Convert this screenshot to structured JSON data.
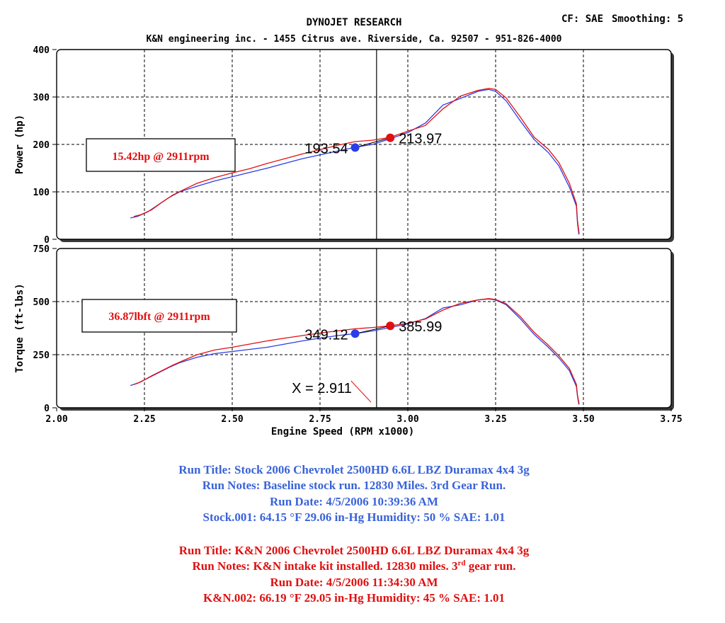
{
  "header": {
    "title": "DYNOJET RESEARCH",
    "subtitle": "K&N engineering inc. - 1455 Citrus ave. Riverside, Ca. 92507 - 951-826-4000",
    "cf": "CF: SAE",
    "smoothing": "Smoothing: 5"
  },
  "chart_data": [
    {
      "type": "line",
      "title": "",
      "ylabel": "Power (hp)",
      "xlabel": "",
      "xlim": [
        2.0,
        3.75
      ],
      "ylim": [
        0,
        400
      ],
      "x_ticks": [
        "2.00",
        "2.25",
        "2.50",
        "2.75",
        "3.00",
        "3.25",
        "3.50",
        "3.75"
      ],
      "y_ticks": [
        "0",
        "100",
        "200",
        "300",
        "400"
      ],
      "grid": true,
      "cursor_x": 2.911,
      "annotation": "15.42hp @ 2911rpm",
      "series": [
        {
          "color": "#2b3ee6",
          "marker_x": 2.85,
          "marker_y": 193.54,
          "marker_label": "193.54",
          "x": [
            2.21,
            2.23,
            2.26,
            2.29,
            2.32,
            2.35,
            2.4,
            2.45,
            2.5,
            2.55,
            2.6,
            2.65,
            2.7,
            2.75,
            2.8,
            2.85,
            2.9,
            2.95,
            3.0,
            3.05,
            3.1,
            3.15,
            3.2,
            3.23,
            3.25,
            3.28,
            3.32,
            3.36,
            3.4,
            3.43,
            3.46,
            3.48,
            3.483,
            3.487
          ],
          "y": [
            45,
            48,
            58,
            73,
            88,
            100,
            112,
            123,
            132,
            141,
            150,
            160,
            170,
            178,
            186,
            194,
            200,
            212,
            225,
            245,
            283,
            297,
            312,
            316,
            312,
            292,
            250,
            210,
            183,
            155,
            110,
            70,
            35,
            10
          ]
        },
        {
          "color": "#e01010",
          "marker_x": 2.95,
          "marker_y": 213.97,
          "marker_label": "213.97",
          "x": [
            2.22,
            2.24,
            2.27,
            2.3,
            2.33,
            2.36,
            2.4,
            2.45,
            2.5,
            2.55,
            2.6,
            2.65,
            2.7,
            2.75,
            2.8,
            2.85,
            2.9,
            2.95,
            3.0,
            3.05,
            3.1,
            3.15,
            3.2,
            3.23,
            3.25,
            3.28,
            3.32,
            3.36,
            3.4,
            3.43,
            3.46,
            3.48,
            3.483,
            3.488
          ],
          "y": [
            48,
            52,
            62,
            78,
            93,
            104,
            118,
            130,
            140,
            149,
            160,
            170,
            180,
            189,
            198,
            206,
            209,
            215,
            228,
            240,
            275,
            302,
            314,
            318,
            316,
            298,
            258,
            215,
            190,
            162,
            118,
            75,
            40,
            12
          ]
        }
      ]
    },
    {
      "type": "line",
      "title": "",
      "ylabel": "Torque (ft-lbs)",
      "xlabel": "Engine Speed (RPM x1000)",
      "xlim": [
        2.0,
        3.75
      ],
      "ylim": [
        0,
        750
      ],
      "x_ticks": [
        "2.00",
        "2.25",
        "2.50",
        "2.75",
        "3.00",
        "3.25",
        "3.50",
        "3.75"
      ],
      "y_ticks": [
        "0",
        "250",
        "500",
        "750"
      ],
      "grid": true,
      "cursor_x": 2.911,
      "cursor_label": "X = 2.911",
      "annotation": "36.87lbft @ 2911rpm",
      "series": [
        {
          "color": "#2b3ee6",
          "marker_x": 2.85,
          "marker_y": 349.12,
          "marker_label": "349.12",
          "x": [
            2.21,
            2.23,
            2.26,
            2.29,
            2.32,
            2.35,
            2.4,
            2.45,
            2.5,
            2.55,
            2.6,
            2.65,
            2.7,
            2.75,
            2.8,
            2.85,
            2.9,
            2.95,
            3.0,
            3.05,
            3.1,
            3.15,
            3.2,
            3.23,
            3.25,
            3.28,
            3.32,
            3.36,
            3.4,
            3.43,
            3.46,
            3.48,
            3.483,
            3.487
          ],
          "y": [
            105,
            115,
            140,
            165,
            190,
            212,
            238,
            255,
            265,
            275,
            285,
            300,
            315,
            328,
            340,
            349,
            362,
            378,
            395,
            420,
            470,
            485,
            508,
            512,
            508,
            485,
            420,
            345,
            285,
            235,
            175,
            100,
            55,
            15
          ]
        },
        {
          "color": "#e01010",
          "marker_x": 2.95,
          "marker_y": 385.99,
          "marker_label": "385.99",
          "x": [
            2.22,
            2.24,
            2.27,
            2.3,
            2.33,
            2.36,
            2.4,
            2.45,
            2.5,
            2.55,
            2.6,
            2.65,
            2.7,
            2.75,
            2.8,
            2.85,
            2.9,
            2.95,
            3.0,
            3.05,
            3.1,
            3.15,
            3.2,
            3.23,
            3.25,
            3.28,
            3.32,
            3.36,
            3.4,
            3.43,
            3.46,
            3.48,
            3.483,
            3.488
          ],
          "y": [
            110,
            122,
            150,
            175,
            200,
            222,
            250,
            272,
            285,
            300,
            315,
            328,
            340,
            352,
            362,
            372,
            378,
            386,
            398,
            418,
            460,
            492,
            508,
            514,
            510,
            490,
            430,
            355,
            295,
            245,
            185,
            110,
            60,
            18
          ]
        }
      ]
    }
  ],
  "runs": [
    {
      "color": "#3a63d8",
      "lines": [
        "Run Title: Stock 2006 Chevrolet 2500HD 6.6L LBZ Duramax 4x4 3g",
        "Run Notes: Baseline stock run. 12830 Miles. 3rd Gear Run.",
        "Run Date: 4/5/2006 10:39:36 AM",
        "Stock.001: 64.15 °F 29.06 in-Hg Humidity: 50 % SAE: 1.01"
      ]
    },
    {
      "color": "#e01010",
      "lines": [
        "Run Title: K&N 2006 Chevrolet 2500HD 6.6L LBZ Duramax 4x4 3g",
        "Run Notes: K&N intake kit installed. 12830 miles. 3",
        "Run Date: 4/5/2006 11:34:30 AM",
        "K&N.002: 66.19 °F 29.05 in-Hg Humidity: 45 % SAE: 1.01"
      ],
      "notes_sup": "rd",
      "notes_tail": " gear run."
    }
  ]
}
